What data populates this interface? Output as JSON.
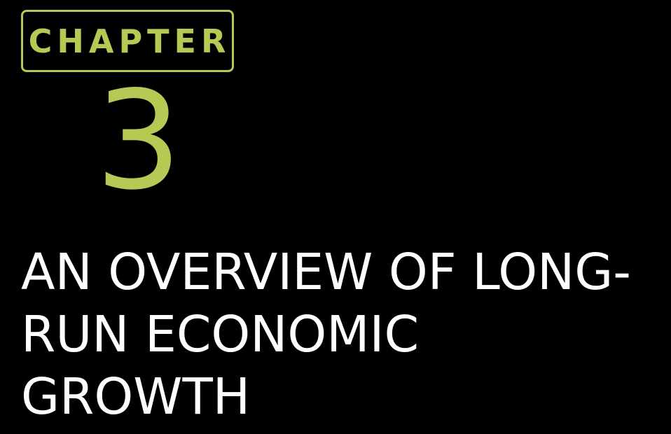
{
  "chapter": {
    "label": "CHAPTER",
    "number": "3"
  },
  "title": {
    "lines": [
      "AN OVERVIEW OF LONG-",
      "RUN ECONOMIC",
      "GROWTH"
    ]
  },
  "colors": {
    "background": "#000000",
    "accent": "#b5c955",
    "title_text": "#ffffff"
  }
}
